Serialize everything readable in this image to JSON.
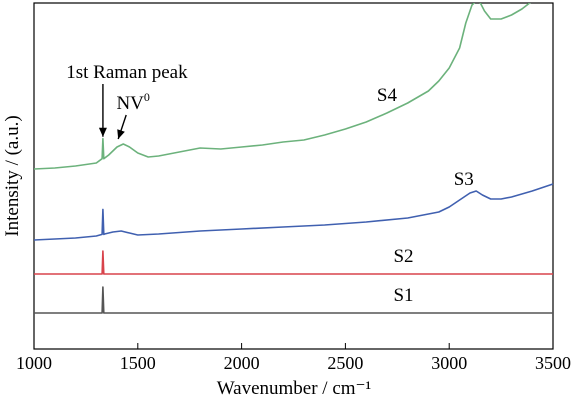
{
  "chart_data": {
    "type": "line",
    "xlabel": "Wavenumber / cm⁻¹",
    "ylabel": "Intensity / (a.u.)",
    "xlim": [
      1000,
      3500
    ],
    "x_ticks": [
      "1000",
      "1500",
      "2000",
      "2500",
      "3000",
      "3500"
    ],
    "y_ticks": [],
    "grid": false,
    "legend": "none",
    "annotations": [
      {
        "text": "1st Raman peak",
        "x": 1332,
        "series": "S4"
      },
      {
        "text": "NV",
        "sup": "0",
        "x": 1420,
        "series": "S4"
      },
      {
        "text": "NV",
        "sup": "−",
        "x": 3145,
        "series": "S4"
      }
    ],
    "series": [
      {
        "name": "S1",
        "color": "#555555",
        "raman_peak": {
          "x": 1332,
          "height": 26
        },
        "x": [
          1000,
          3500
        ],
        "y": [
          0,
          0
        ],
        "label_x": 2780
      },
      {
        "name": "S2",
        "color": "#d8434b",
        "raman_peak": {
          "x": 1332,
          "height": 23
        },
        "x": [
          1000,
          3500
        ],
        "y": [
          39,
          39
        ],
        "label_x": 2780
      },
      {
        "name": "S3",
        "color": "#4060b0",
        "raman_peak": {
          "x": 1332,
          "height": 25
        },
        "x": [
          1000,
          1100,
          1200,
          1300,
          1340,
          1380,
          1420,
          1460,
          1500,
          1600,
          1800,
          2000,
          2200,
          2400,
          2600,
          2800,
          2950,
          3000,
          3050,
          3100,
          3130,
          3160,
          3200,
          3250,
          3300,
          3400,
          3500
        ],
        "y": [
          73,
          74,
          75,
          77,
          79,
          81,
          82,
          80,
          78,
          79,
          82,
          84,
          86,
          88,
          91,
          95,
          101,
          106,
          113,
          120,
          122,
          118,
          114,
          114,
          116,
          122,
          129
        ],
        "label_x": 3070
      },
      {
        "name": "S4",
        "color": "#6cb27c",
        "raman_peak": {
          "x": 1332,
          "height": 20
        },
        "x": [
          1000,
          1100,
          1200,
          1300,
          1360,
          1400,
          1430,
          1460,
          1500,
          1550,
          1600,
          1700,
          1800,
          1900,
          2000,
          2100,
          2200,
          2300,
          2400,
          2500,
          2600,
          2700,
          2800,
          2900,
          2950,
          3000,
          3050,
          3080,
          3110,
          3140,
          3170,
          3200,
          3250,
          3300,
          3350,
          3400,
          3450,
          3500
        ],
        "y": [
          144,
          145,
          147,
          150,
          158,
          166,
          169,
          166,
          160,
          156,
          157,
          161,
          165,
          164,
          166,
          168,
          171,
          173,
          178,
          184,
          191,
          200,
          210,
          222,
          232,
          245,
          265,
          290,
          308,
          314,
          302,
          294,
          294,
          298,
          304,
          312,
          323,
          338
        ],
        "label_x": 2700
      }
    ]
  }
}
